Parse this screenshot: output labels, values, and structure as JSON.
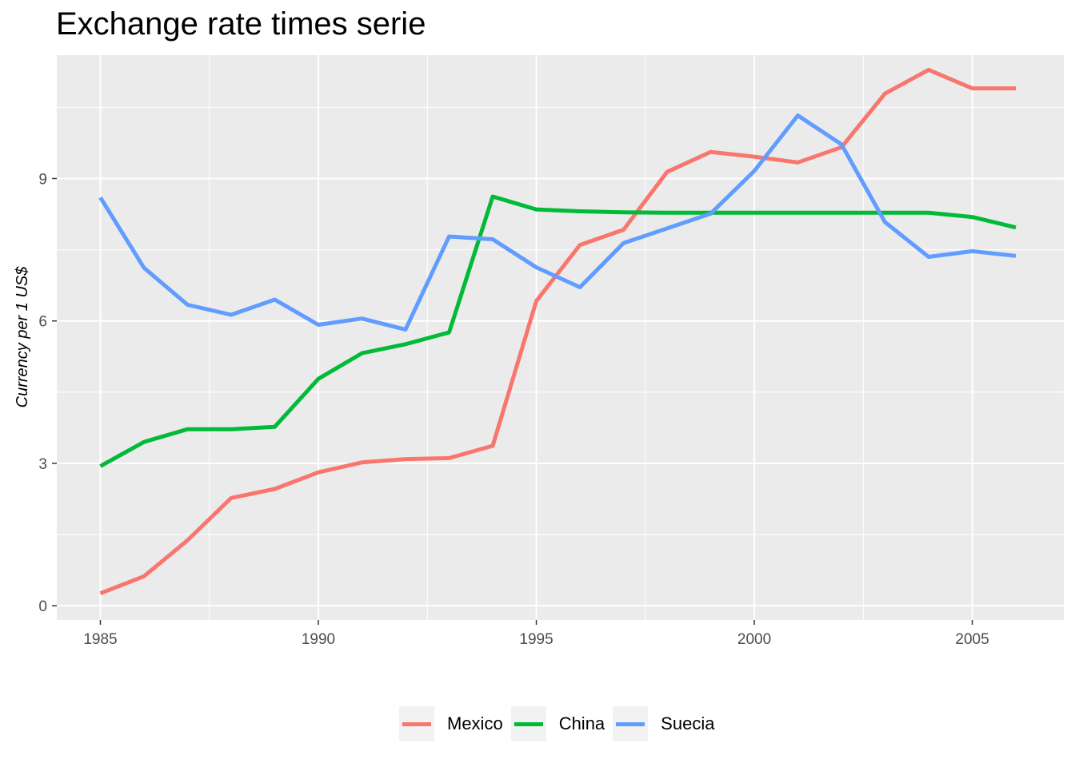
{
  "chart_data": {
    "type": "line",
    "title": "Exchange rate times serie",
    "xlabel": "",
    "ylabel": "Currency per 1 US$",
    "x": [
      1985,
      1986,
      1987,
      1988,
      1989,
      1990,
      1991,
      1992,
      1993,
      1994,
      1995,
      1996,
      1997,
      1998,
      1999,
      2000,
      2001,
      2002,
      2003,
      2004,
      2005,
      2006
    ],
    "xticks": [
      1985,
      1990,
      1995,
      2000,
      2005
    ],
    "yticks": [
      0,
      3,
      6,
      9
    ],
    "xlim": [
      1984,
      2007.1
    ],
    "ylim": [
      -0.3,
      11.6
    ],
    "grid": true,
    "legend_position": "bottom",
    "series": [
      {
        "name": "Mexico",
        "color": "#F8766D",
        "values": [
          0.26,
          0.62,
          1.38,
          2.27,
          2.46,
          2.81,
          3.02,
          3.09,
          3.11,
          3.37,
          6.42,
          7.6,
          7.92,
          9.14,
          9.56,
          9.46,
          9.34,
          9.66,
          10.79,
          11.29,
          10.9,
          10.9
        ]
      },
      {
        "name": "China",
        "color": "#00BA38",
        "values": [
          2.94,
          3.45,
          3.72,
          3.72,
          3.77,
          4.78,
          5.32,
          5.51,
          5.76,
          8.62,
          8.35,
          8.31,
          8.29,
          8.28,
          8.28,
          8.28,
          8.28,
          8.28,
          8.28,
          8.28,
          8.19,
          7.97
        ]
      },
      {
        "name": "Suecia",
        "color": "#619CFF",
        "values": [
          8.6,
          7.12,
          6.34,
          6.13,
          6.45,
          5.92,
          6.05,
          5.82,
          7.78,
          7.72,
          7.13,
          6.71,
          7.64,
          7.95,
          8.26,
          9.16,
          10.33,
          9.72,
          8.08,
          7.35,
          7.47,
          7.37
        ]
      }
    ]
  }
}
